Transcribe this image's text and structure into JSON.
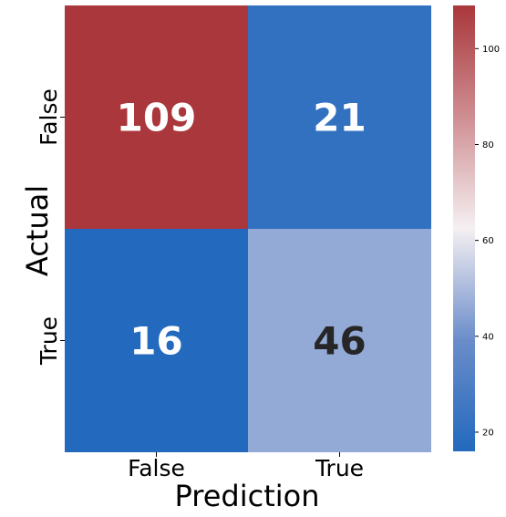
{
  "chart_data": {
    "type": "heatmap",
    "xlabel": "Prediction",
    "ylabel": "Actual",
    "x_categories": [
      "False",
      "True"
    ],
    "y_categories": [
      "False",
      "True"
    ],
    "values": [
      [
        109,
        21
      ],
      [
        16,
        46
      ]
    ],
    "colorbar": {
      "min": 16,
      "max": 109,
      "ticks": [
        20,
        40,
        60,
        80,
        100
      ],
      "colormap": "vlag",
      "colors": {
        "low": "#2369bd",
        "mid": "#f5f0f2",
        "high": "#a9373b"
      }
    },
    "annotation_colors": {
      "light_text": "#ffffff",
      "dark_text": "#262626"
    }
  }
}
